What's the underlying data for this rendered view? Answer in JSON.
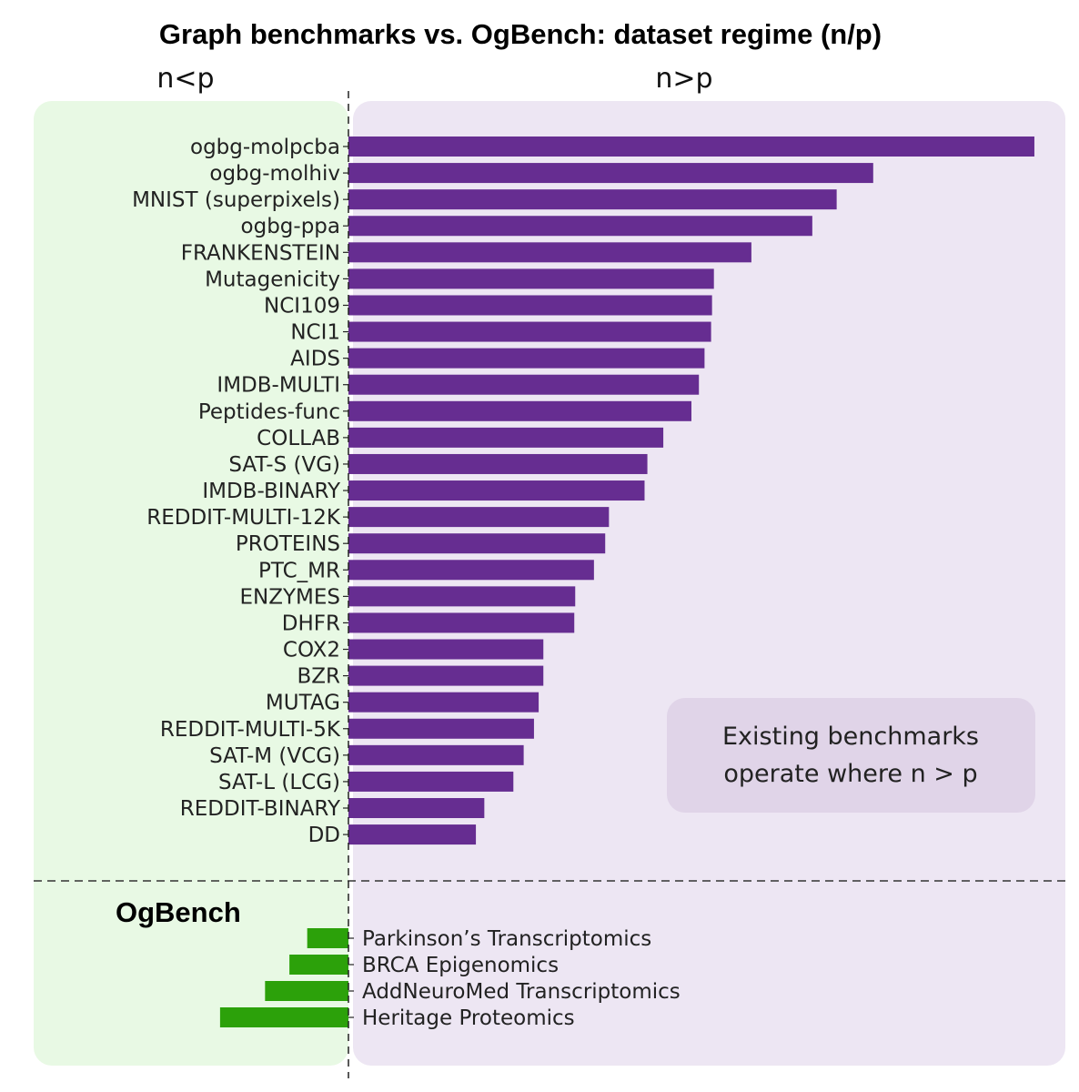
{
  "title": "Graph benchmarks vs. OgBench: dataset regime (n/p)",
  "regions": {
    "left": "n<p",
    "right": "n>p"
  },
  "colors": {
    "left_bg": "#e8f9e4",
    "right_bg": "#ede6f3",
    "benchmark_bar": "#662d91",
    "ogbench_bar": "#2ca10a",
    "annotation_bg": "#e0d4e8"
  },
  "annotation": {
    "lines": [
      "Existing benchmarks",
      "operate where n > p"
    ]
  },
  "chart_data": {
    "type": "bar",
    "orientation": "horizontal",
    "title": "Graph benchmarks vs. OgBench: dataset regime (n/p)",
    "xlabel": "",
    "ylabel": "",
    "x_tick_labels_shown": false,
    "divider": "n = p",
    "xlim": [
      -1.5,
      8.0
    ],
    "series": [
      {
        "group": "benchmarks",
        "categories": [
          "ogbg-molpcba",
          "ogbg-molhiv",
          "MNIST (superpixels)",
          "ogbg-ppa",
          "FRANKENSTEIN",
          "Mutagenicity",
          "NCI109",
          "NCI1",
          "AIDS",
          "IMDB-MULTI",
          "Peptides-func",
          "COLLAB",
          "SAT-S (VG)",
          "IMDB-BINARY",
          "REDDIT-MULTI-12K",
          "PROTEINS",
          "PTC_MR",
          "ENZYMES",
          "DHFR",
          "COX2",
          "BZR",
          "MUTAG",
          "REDDIT-MULTI-5K",
          "SAT-M (VCG)",
          "SAT-L (LCG)",
          "REDDIT-BINARY",
          "DD"
        ],
        "values": [
          7.32,
          5.6,
          5.21,
          4.95,
          4.3,
          3.9,
          3.88,
          3.87,
          3.8,
          3.74,
          3.66,
          3.36,
          3.19,
          3.16,
          2.78,
          2.74,
          2.62,
          2.42,
          2.41,
          2.08,
          2.08,
          2.03,
          1.98,
          1.87,
          1.76,
          1.45,
          1.36
        ]
      },
      {
        "group": "OgBench",
        "categories": [
          "Parkinson’s Transcriptomics",
          "BRCA Epigenomics",
          "AddNeuroMed Transcriptomics",
          "Heritage Proteomics"
        ],
        "values": [
          -0.44,
          -0.63,
          -0.89,
          -1.37
        ]
      }
    ],
    "sections": [
      "",
      "OgBench"
    ],
    "grid": false,
    "legend": "none"
  }
}
